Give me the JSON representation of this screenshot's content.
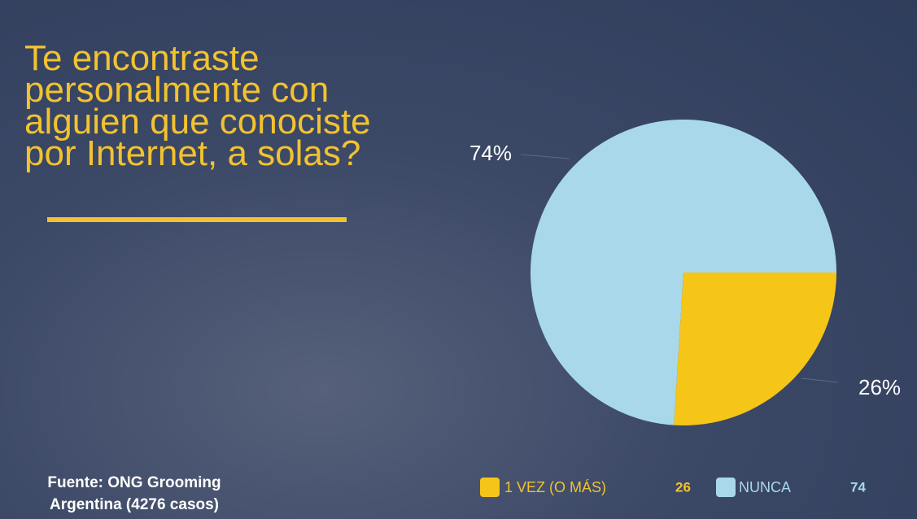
{
  "chart_data": {
    "type": "pie",
    "title": [
      "Te encontraste",
      "personalmente con",
      "alguien que conociste",
      "por Internet, a solas?"
    ],
    "source": "Fuente: ONG Grooming Argentina (4276 casos)",
    "categories": [
      "1 VEZ (O MÁS)",
      "NUNCA"
    ],
    "values": [
      26,
      74
    ],
    "value_labels": [
      "26%",
      "74%"
    ],
    "colors": [
      "#f5c518",
      "#a8d8ea"
    ],
    "legend": "bottom"
  }
}
